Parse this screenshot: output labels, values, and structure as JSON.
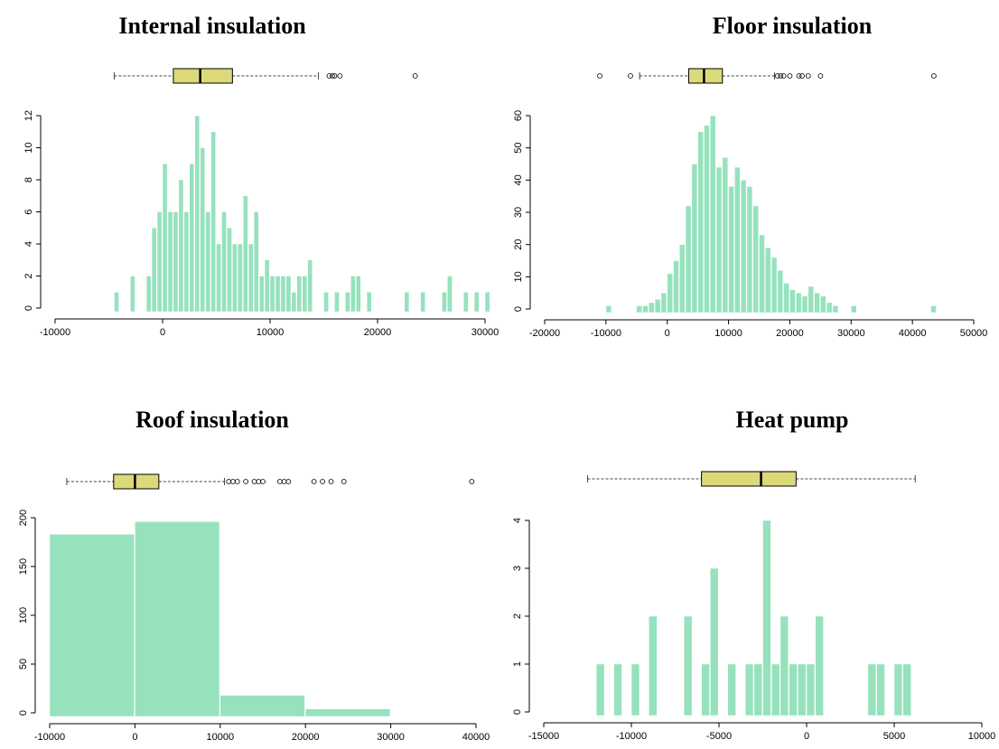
{
  "colors": {
    "bar_fill": "#96e2bd",
    "box_fill": "#dcd97a",
    "axis": "#000000",
    "whisker": "#444444"
  },
  "chart_data": [
    {
      "type": "bar",
      "title": "Internal insulation",
      "xlabel": "",
      "ylabel": "",
      "xlim": [
        -10000,
        30000
      ],
      "ylim": [
        0,
        12
      ],
      "x_ticks": [
        -10000,
        0,
        10000,
        20000,
        30000
      ],
      "y_ticks": [
        0,
        2,
        4,
        6,
        8,
        10,
        12
      ],
      "bin_width": 500,
      "bins": [
        [
          -4500,
          1
        ],
        [
          -3000,
          2
        ],
        [
          -1500,
          2
        ],
        [
          -1000,
          5
        ],
        [
          -500,
          6
        ],
        [
          0,
          9
        ],
        [
          500,
          6
        ],
        [
          1000,
          6
        ],
        [
          1500,
          8
        ],
        [
          2000,
          6
        ],
        [
          2500,
          9
        ],
        [
          3000,
          12
        ],
        [
          3500,
          10
        ],
        [
          4000,
          6
        ],
        [
          4500,
          11
        ],
        [
          5000,
          4
        ],
        [
          5500,
          6
        ],
        [
          6000,
          5
        ],
        [
          6500,
          4
        ],
        [
          7000,
          4
        ],
        [
          7500,
          7
        ],
        [
          8000,
          4
        ],
        [
          8500,
          6
        ],
        [
          9000,
          2
        ],
        [
          9500,
          3
        ],
        [
          10000,
          2
        ],
        [
          10500,
          2
        ],
        [
          11000,
          2
        ],
        [
          11500,
          2
        ],
        [
          12000,
          1
        ],
        [
          12500,
          2
        ],
        [
          13000,
          2
        ],
        [
          13500,
          3
        ],
        [
          15000,
          1
        ],
        [
          16000,
          1
        ],
        [
          17000,
          1
        ],
        [
          17500,
          2
        ],
        [
          18000,
          2
        ],
        [
          19000,
          1
        ],
        [
          22500,
          1
        ],
        [
          24000,
          1
        ],
        [
          26000,
          1
        ],
        [
          26500,
          2
        ],
        [
          28000,
          1
        ],
        [
          29000,
          1
        ],
        [
          30000,
          1
        ]
      ],
      "boxplot": {
        "min": -4500,
        "q1": 1000,
        "median": 3500,
        "q3": 6500,
        "max": 14500,
        "outliers": [
          15500,
          15800,
          16000,
          16500,
          23500
        ]
      }
    },
    {
      "type": "bar",
      "title": "Floor insulation",
      "xlabel": "",
      "ylabel": "",
      "xlim": [
        -20000,
        50000
      ],
      "ylim": [
        0,
        60
      ],
      "x_ticks": [
        -20000,
        -10000,
        0,
        10000,
        20000,
        30000,
        40000,
        50000
      ],
      "y_ticks": [
        0,
        10,
        20,
        30,
        40,
        50,
        60
      ],
      "bin_width": 1000,
      "bins": [
        [
          -10000,
          1
        ],
        [
          -5000,
          1
        ],
        [
          -4000,
          1
        ],
        [
          -3000,
          2
        ],
        [
          -2000,
          3
        ],
        [
          -1000,
          5
        ],
        [
          0,
          11
        ],
        [
          1000,
          15
        ],
        [
          2000,
          20
        ],
        [
          3000,
          32
        ],
        [
          4000,
          45
        ],
        [
          5000,
          55
        ],
        [
          6000,
          57
        ],
        [
          7000,
          60
        ],
        [
          8000,
          44
        ],
        [
          9000,
          47
        ],
        [
          10000,
          38
        ],
        [
          11000,
          44
        ],
        [
          12000,
          40
        ],
        [
          13000,
          38
        ],
        [
          14000,
          32
        ],
        [
          15000,
          23
        ],
        [
          16000,
          19
        ],
        [
          17000,
          16
        ],
        [
          18000,
          12
        ],
        [
          19000,
          8
        ],
        [
          20000,
          6
        ],
        [
          21000,
          5
        ],
        [
          22000,
          4
        ],
        [
          23000,
          7
        ],
        [
          24000,
          5
        ],
        [
          25000,
          4
        ],
        [
          26000,
          2
        ],
        [
          27000,
          1
        ],
        [
          30000,
          1
        ],
        [
          43000,
          1
        ]
      ],
      "boxplot": {
        "min": -4500,
        "q1": 3500,
        "median": 6000,
        "q3": 9000,
        "max": 17500,
        "outliers": [
          -11000,
          -6000,
          18000,
          18500,
          19000,
          20000,
          21500,
          22000,
          23000,
          25000,
          43500
        ]
      }
    },
    {
      "type": "bar",
      "title": "Roof insulation",
      "xlabel": "",
      "ylabel": "",
      "xlim": [
        -10000,
        40000
      ],
      "ylim": [
        0,
        200
      ],
      "x_ticks": [
        -10000,
        0,
        10000,
        20000,
        30000,
        40000
      ],
      "y_ticks": [
        0,
        50,
        100,
        150,
        200
      ],
      "bin_width": 10000,
      "bins": [
        [
          -10000,
          183
        ],
        [
          0,
          196
        ],
        [
          10000,
          18
        ],
        [
          20000,
          4
        ]
      ],
      "boxplot": {
        "min": -8000,
        "q1": -2500,
        "median": 0,
        "q3": 2800,
        "max": 10500,
        "outliers": [
          11000,
          11500,
          12000,
          13000,
          14000,
          14500,
          15000,
          17000,
          17500,
          18000,
          21000,
          22000,
          23000,
          24500,
          39500
        ]
      }
    },
    {
      "type": "bar",
      "title": "Heat pump",
      "xlabel": "",
      "ylabel": "",
      "xlim": [
        -15000,
        10000
      ],
      "ylim": [
        0,
        4
      ],
      "x_ticks": [
        -15000,
        -10000,
        -5000,
        0,
        5000,
        10000
      ],
      "y_ticks": [
        0,
        1,
        2,
        3,
        4
      ],
      "bin_width": 500,
      "bins": [
        [
          -12000,
          1
        ],
        [
          -11000,
          1
        ],
        [
          -10000,
          1
        ],
        [
          -9000,
          2
        ],
        [
          -7000,
          2
        ],
        [
          -6000,
          1
        ],
        [
          -5500,
          3
        ],
        [
          -4500,
          1
        ],
        [
          -3500,
          1
        ],
        [
          -3000,
          1
        ],
        [
          -2500,
          4
        ],
        [
          -2000,
          1
        ],
        [
          -1500,
          2
        ],
        [
          -1000,
          1
        ],
        [
          -500,
          1
        ],
        [
          0,
          1
        ],
        [
          500,
          2
        ],
        [
          3500,
          1
        ],
        [
          4000,
          1
        ],
        [
          5000,
          1
        ],
        [
          5500,
          1
        ]
      ],
      "boxplot": {
        "min": -12500,
        "q1": -6000,
        "median": -2600,
        "q3": -600,
        "max": 6200,
        "outliers": []
      }
    }
  ]
}
